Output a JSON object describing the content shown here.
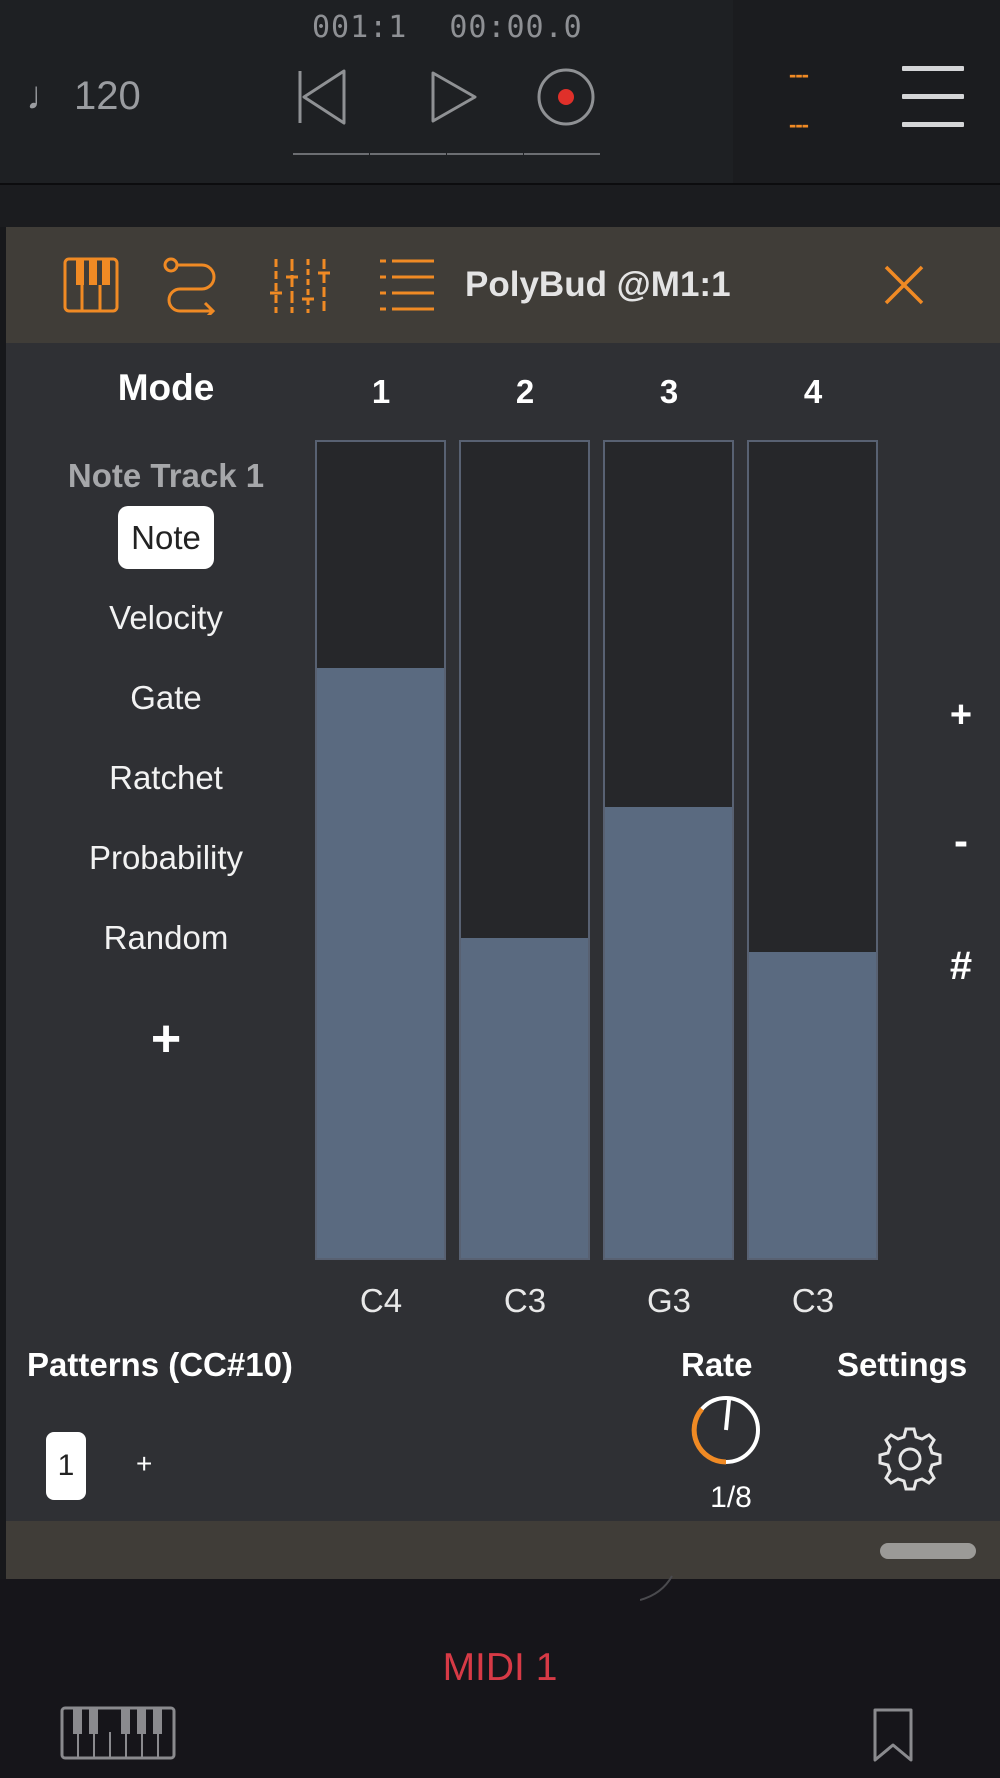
{
  "transport": {
    "tempo": "120",
    "bar_position": "001:1",
    "time": "00:00.0",
    "slot_top": "---",
    "slot_bottom": "---"
  },
  "plugin": {
    "title": "PolyBud @M1:1",
    "mode_heading": "Mode",
    "track_name": "Note Track 1",
    "modes": [
      "Note",
      "Velocity",
      "Gate",
      "Ratchet",
      "Probability",
      "Random"
    ],
    "selected_mode": "Note",
    "add_mode": "+",
    "steps": [
      {
        "number": "1",
        "note": "C4",
        "level": 0.725
      },
      {
        "number": "2",
        "note": "C3",
        "level": 0.395
      },
      {
        "number": "3",
        "note": "G3",
        "level": 0.555
      },
      {
        "number": "4",
        "note": "C3",
        "level": 0.378
      }
    ],
    "side_controls": [
      "+",
      "-",
      "#"
    ],
    "patterns_label": "Patterns (CC#10)",
    "pattern_current": "1",
    "pattern_add": "+",
    "rate_label": "Rate",
    "rate_value": "1/8",
    "settings_label": "Settings"
  },
  "bottom": {
    "track_label": "MIDI 1"
  },
  "colors": {
    "accent": "#f08a24",
    "step_fill": "#5a6a80",
    "midi_label": "#d73a46"
  }
}
